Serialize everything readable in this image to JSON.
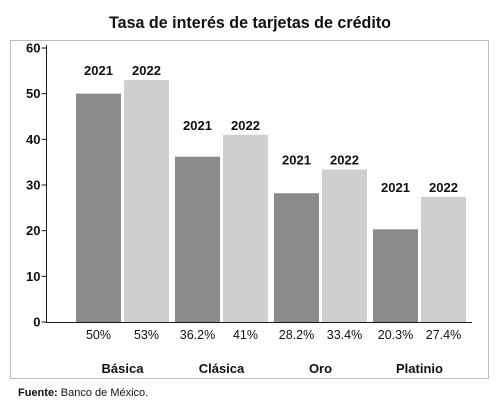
{
  "chart_data": {
    "type": "bar",
    "title": "Tasa de interés de tarjetas de crédito",
    "categories": [
      "Básica",
      "Clásica",
      "Oro",
      "Platinio"
    ],
    "series": [
      {
        "name": "2021",
        "values": [
          50,
          36.2,
          28.2,
          20.3
        ],
        "data_labels": [
          "50%",
          "36.2%",
          "28.2%",
          "20.3%"
        ],
        "color": "#8b8b8d"
      },
      {
        "name": "2022",
        "values": [
          53,
          41,
          33.4,
          27.4
        ],
        "data_labels": [
          "53%",
          "41%",
          "33.4%",
          "27.4%"
        ],
        "color": "#cfcfd1"
      }
    ],
    "ylim": [
      0,
      60
    ],
    "y_ticks": [
      0,
      10,
      20,
      30,
      40,
      50,
      60
    ],
    "grid": false
  },
  "source": {
    "label": "Fuente:",
    "text": "Banco de México."
  }
}
